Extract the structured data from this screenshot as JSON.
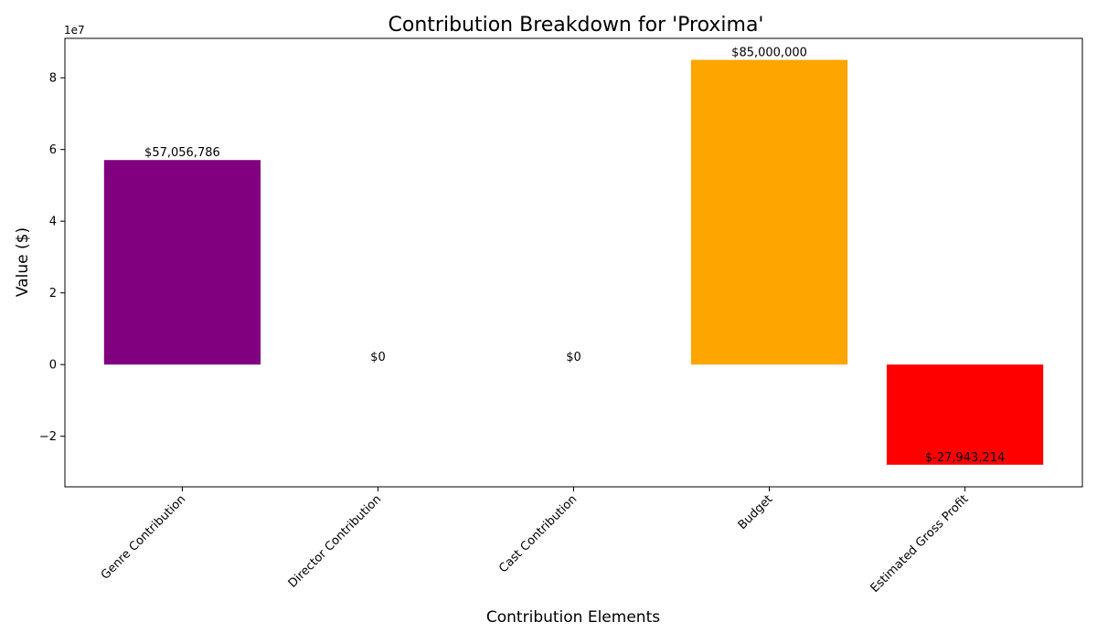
{
  "chart_data": {
    "type": "bar",
    "title": "Contribution Breakdown for 'Proxima'",
    "xlabel": "Contribution Elements",
    "ylabel": "Value ($)",
    "y_offset_label": "1e7",
    "categories": [
      "Genre Contribution",
      "Director Contribution",
      "Cast Contribution",
      "Budget",
      "Estimated Gross Profit"
    ],
    "values": [
      57056786,
      0,
      0,
      85000000,
      -27943214
    ],
    "value_labels": [
      "$57,056,786",
      "$0",
      "$0",
      "$85,000,000",
      "$-27,943,214"
    ],
    "colors": [
      "#800080",
      "#008000",
      "#0000ff",
      "#ffa500",
      "#ff0000"
    ],
    "ylim": [
      -34100000,
      91000000
    ],
    "yticks": [
      -20000000,
      0,
      20000000,
      40000000,
      60000000,
      80000000
    ],
    "ytick_labels": [
      "−2",
      "0",
      "2",
      "4",
      "6",
      "8"
    ],
    "grid": false,
    "legend": "none"
  }
}
